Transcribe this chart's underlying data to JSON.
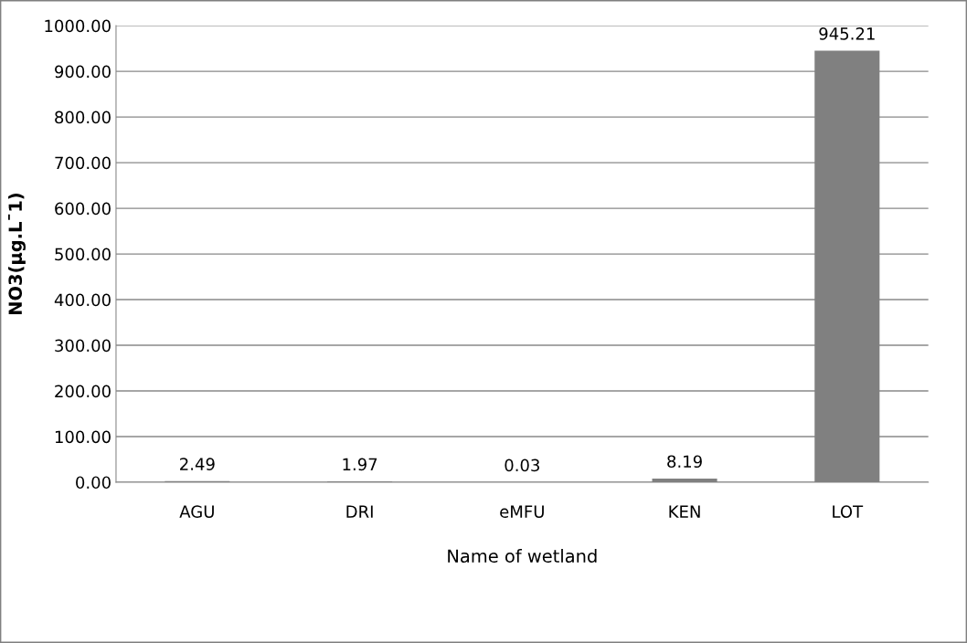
{
  "chart_data": {
    "type": "bar",
    "xlabel": "Name of wetland",
    "ylabel": "NO3(µg.L¯1)",
    "categories": [
      "AGU",
      "DRI",
      "eMFU",
      "KEN",
      "LOT"
    ],
    "values": [
      2.49,
      1.97,
      0.03,
      8.19,
      945.21
    ],
    "color": "#808080",
    "ylim": [
      0,
      1000
    ],
    "yticks": [
      {
        "value": 0,
        "label": "0.00"
      },
      {
        "value": 100,
        "label": "100.00"
      },
      {
        "value": 200,
        "label": "200.00"
      },
      {
        "value": 300,
        "label": "300.00"
      },
      {
        "value": 400,
        "label": "400.00"
      },
      {
        "value": 500,
        "label": "500.00"
      },
      {
        "value": 600,
        "label": "600.00"
      },
      {
        "value": 700,
        "label": "700.00"
      },
      {
        "value": 800,
        "label": "800.00"
      },
      {
        "value": 900,
        "label": "900.00"
      },
      {
        "value": 1000,
        "label": "1000.00"
      }
    ],
    "grid": "y",
    "data_labels": true,
    "legend": false
  }
}
